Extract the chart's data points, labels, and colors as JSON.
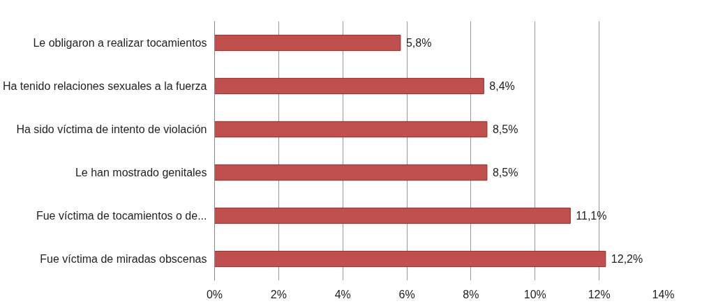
{
  "chart_data": {
    "type": "bar",
    "orientation": "horizontal",
    "categories": [
      "Le obligaron a realizar tocamientos",
      "Ha tenido relaciones sexuales a la fuerza",
      "Ha sido víctima de intento de violación",
      "Le han mostrado genitales",
      "Fue víctima de tocamientos o de...",
      "Fue víctima de miradas obscenas"
    ],
    "values": [
      5.8,
      8.4,
      8.5,
      8.5,
      11.1,
      12.2
    ],
    "value_labels": [
      "5,8%",
      "8,4%",
      "8,5%",
      "8,5%",
      "11,1%",
      "12,2%"
    ],
    "color": "#c0504d",
    "xlim": [
      0,
      14
    ],
    "xticks": [
      {
        "value": 0,
        "label": "0%"
      },
      {
        "value": 2,
        "label": "2%"
      },
      {
        "value": 4,
        "label": "4%"
      },
      {
        "value": 6,
        "label": "6%"
      },
      {
        "value": 8,
        "label": "8%"
      },
      {
        "value": 10,
        "label": "10%"
      },
      {
        "value": 12,
        "label": "12%"
      },
      {
        "value": 14,
        "label": "14%"
      }
    ],
    "grid": "x"
  }
}
